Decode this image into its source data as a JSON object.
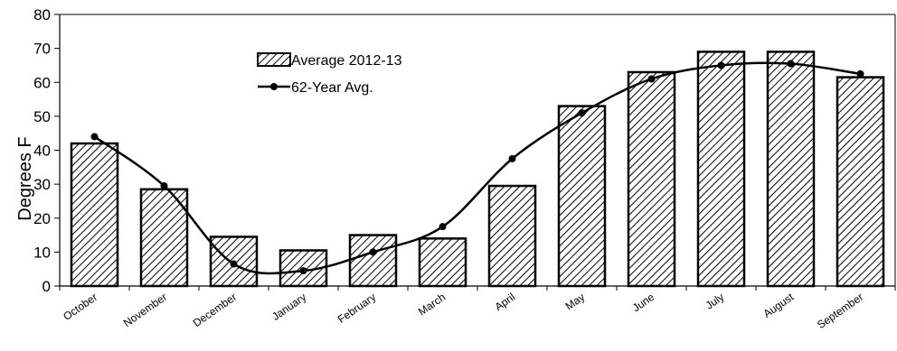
{
  "chart_data": {
    "type": "bar",
    "categories": [
      "October",
      "November",
      "December",
      "January",
      "February",
      "March",
      "April",
      "May",
      "June",
      "July",
      "August",
      "September"
    ],
    "series": [
      {
        "name": "Average 2012-13",
        "type": "bar",
        "values": [
          42,
          28.5,
          14.5,
          10.5,
          15,
          14,
          29.5,
          53,
          63,
          69,
          69,
          61.5
        ]
      },
      {
        "name": "62-Year Avg.",
        "type": "line",
        "values": [
          44,
          29.5,
          6.5,
          4.5,
          10,
          17.5,
          37.5,
          51,
          61,
          65,
          65.5,
          62.5
        ]
      }
    ],
    "title": "",
    "xlabel": "",
    "ylabel": "Degrees F",
    "ylim": [
      0,
      80
    ],
    "yticks": [
      0,
      10,
      20,
      30,
      40,
      50,
      60,
      70,
      80
    ],
    "grid": false,
    "legend_position": "top-left",
    "colors": {
      "bar_fill": "#ffffff",
      "bar_hatch": "#000000",
      "line": "#000000",
      "axis": "#000000"
    }
  }
}
